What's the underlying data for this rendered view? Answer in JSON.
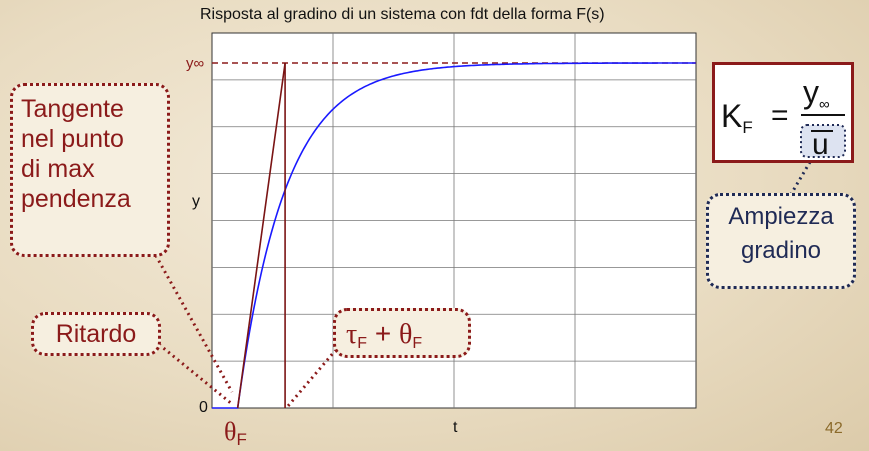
{
  "title": "Risposta al gradino di un sistema con fdt della forma F(s)",
  "axes": {
    "y_top_label": "y∞",
    "y_label": "y",
    "y_zero_label": "0",
    "x_label": "t"
  },
  "callouts": {
    "tangent": [
      "Tangente",
      "nel punto",
      "di max",
      "pendenza"
    ],
    "delay": "Ritardo",
    "tau_plus_theta": "τF + θF",
    "step_amplitude": [
      "Ampiezza",
      "gradino"
    ],
    "theta_label": "θF"
  },
  "gain_formula": {
    "lhs": "KF",
    "equals": "=",
    "numerator": "y∞",
    "denominator": "u"
  },
  "slide_number": "42",
  "colors": {
    "response_curve": "#1a1aff",
    "tangent_line": "#7a1414",
    "callout_border": "#8b1a1a",
    "amplitude_border": "#1f2a55",
    "asymptote": "#8b1a1a"
  },
  "chart_data": {
    "type": "line",
    "x_grid_divisions": 4,
    "y_grid_divisions": 8,
    "dead_time_fraction_of_axis": 0.053,
    "time_constant_fraction_of_axis": 0.098,
    "series": [
      {
        "kind": "first-order-plus-dead-time step response"
      }
    ]
  }
}
